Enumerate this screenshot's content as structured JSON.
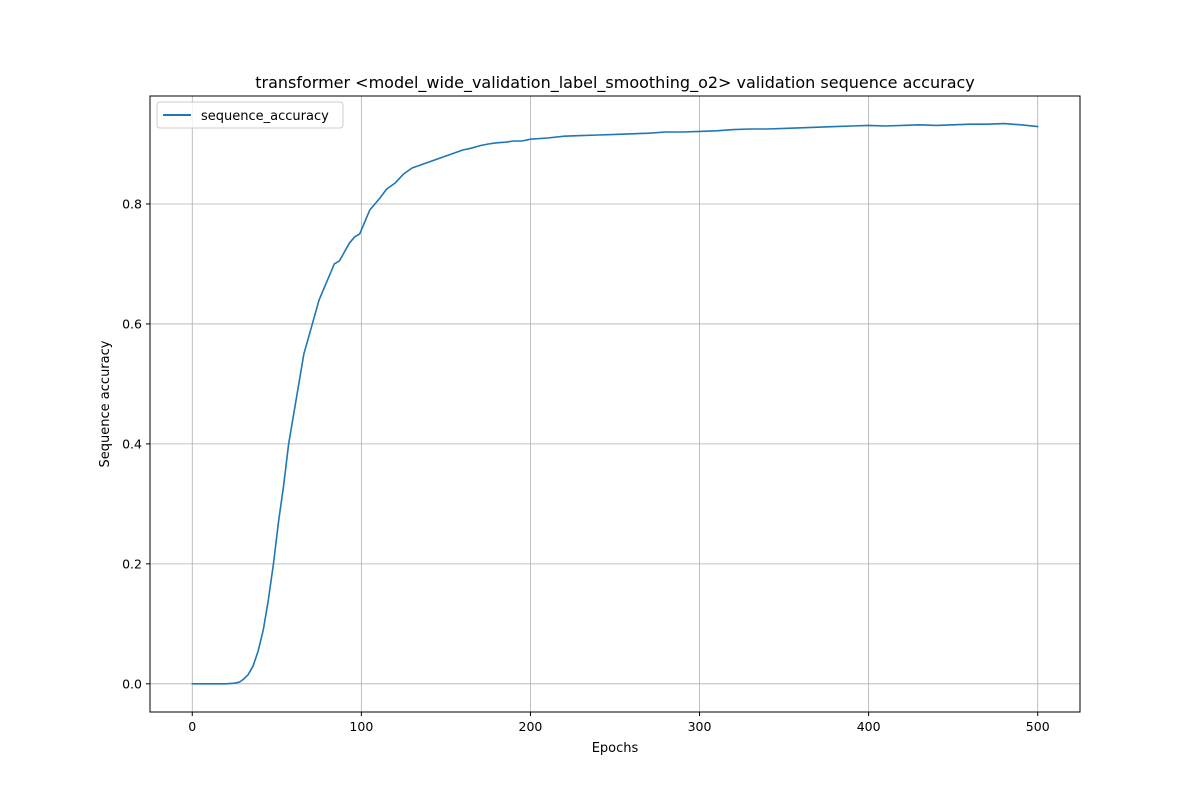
{
  "chart_data": {
    "type": "line",
    "title": "transformer <model_wide_validation_label_smoothing_o2> validation sequence accuracy",
    "xlabel": "Epochs",
    "ylabel": "Sequence accuracy",
    "xlim": [
      -25,
      525
    ],
    "ylim": [
      -0.047,
      0.98
    ],
    "xticks": [
      0,
      100,
      200,
      300,
      400,
      500
    ],
    "yticks": [
      0.0,
      0.2,
      0.4,
      0.6,
      0.8
    ],
    "xtick_labels": [
      "0",
      "100",
      "200",
      "300",
      "400",
      "500"
    ],
    "ytick_labels": [
      "0.0",
      "0.2",
      "0.4",
      "0.6",
      "0.8"
    ],
    "grid": true,
    "legend_position": "top-left",
    "series": [
      {
        "name": "sequence_accuracy",
        "color": "#1f77b4",
        "x": [
          0,
          10,
          20,
          25,
          28,
          30,
          33,
          36,
          39,
          42,
          45,
          48,
          51,
          54,
          57,
          60,
          63,
          66,
          69,
          72,
          75,
          78,
          81,
          84,
          87,
          90,
          93,
          96,
          99,
          102,
          105,
          108,
          111,
          115,
          120,
          125,
          130,
          135,
          140,
          145,
          150,
          155,
          160,
          165,
          170,
          175,
          180,
          185,
          190,
          195,
          200,
          210,
          220,
          230,
          240,
          250,
          260,
          270,
          280,
          290,
          300,
          310,
          320,
          330,
          340,
          350,
          360,
          370,
          380,
          390,
          400,
          410,
          420,
          430,
          440,
          450,
          460,
          470,
          480,
          490,
          500
        ],
        "y": [
          0.0,
          0.0,
          0.0,
          0.001,
          0.003,
          0.007,
          0.015,
          0.03,
          0.055,
          0.09,
          0.14,
          0.2,
          0.27,
          0.33,
          0.4,
          0.45,
          0.5,
          0.55,
          0.58,
          0.61,
          0.64,
          0.66,
          0.68,
          0.7,
          0.705,
          0.72,
          0.735,
          0.745,
          0.75,
          0.77,
          0.79,
          0.8,
          0.81,
          0.825,
          0.835,
          0.85,
          0.86,
          0.865,
          0.87,
          0.875,
          0.88,
          0.885,
          0.89,
          0.893,
          0.897,
          0.9,
          0.902,
          0.903,
          0.905,
          0.905,
          0.908,
          0.91,
          0.913,
          0.914,
          0.915,
          0.916,
          0.917,
          0.918,
          0.92,
          0.92,
          0.921,
          0.922,
          0.924,
          0.925,
          0.925,
          0.926,
          0.927,
          0.928,
          0.929,
          0.93,
          0.931,
          0.93,
          0.931,
          0.932,
          0.931,
          0.932,
          0.933,
          0.933,
          0.934,
          0.932,
          0.929
        ]
      }
    ]
  }
}
